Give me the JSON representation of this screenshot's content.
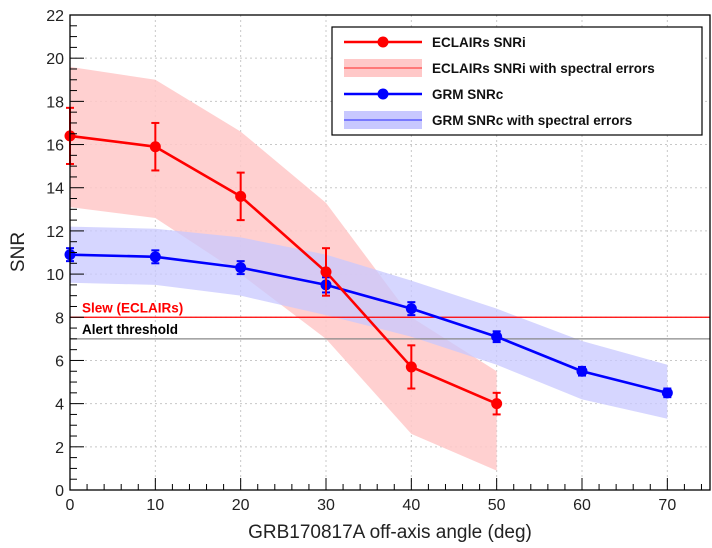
{
  "chart_data": {
    "type": "line",
    "xlabel": "GRB170817A off-axis angle (deg)",
    "ylabel": "SNR",
    "xlim": [
      0,
      75
    ],
    "ylim": [
      0,
      22
    ],
    "x_ticks": [
      0,
      10,
      20,
      30,
      40,
      50,
      60,
      70
    ],
    "y_ticks": [
      0,
      2,
      4,
      6,
      8,
      10,
      12,
      14,
      16,
      18,
      20,
      22
    ],
    "grid": true,
    "legend_position": "top-right",
    "series": [
      {
        "name": "ECLAIRs SNRi",
        "color": "#ff0000",
        "x": [
          0,
          10,
          20,
          30,
          40,
          50
        ],
        "y": [
          16.4,
          15.9,
          13.6,
          10.1,
          5.7,
          4.0
        ],
        "yerr": [
          1.3,
          1.1,
          1.1,
          1.1,
          1.0,
          0.5
        ]
      },
      {
        "name": "GRM SNRc",
        "color": "#0000ff",
        "x": [
          0,
          10,
          20,
          30,
          40,
          50,
          60,
          70
        ],
        "y": [
          10.9,
          10.8,
          10.3,
          9.5,
          8.4,
          7.1,
          5.5,
          4.5
        ],
        "yerr": [
          0.3,
          0.3,
          0.3,
          0.35,
          0.3,
          0.25,
          0.2,
          0.2
        ]
      }
    ],
    "bands": [
      {
        "name": "ECLAIRs SNRi with spectral errors",
        "color": "#ffc8c8",
        "x": [
          0,
          10,
          20,
          30,
          40,
          50
        ],
        "upper": [
          19.6,
          19.0,
          16.6,
          13.3,
          8.0,
          5.5
        ],
        "lower": [
          13.1,
          12.6,
          10.0,
          7.0,
          2.6,
          0.9
        ]
      },
      {
        "name": "GRM SNRc with spectral errors",
        "color": "#c8c8ff",
        "x": [
          0,
          10,
          20,
          30,
          40,
          50,
          60,
          70
        ],
        "upper": [
          12.2,
          12.1,
          11.7,
          10.9,
          9.7,
          8.4,
          6.9,
          5.8
        ],
        "lower": [
          9.6,
          9.5,
          9.0,
          8.1,
          7.1,
          5.8,
          4.2,
          3.3
        ]
      }
    ],
    "hlines": [
      {
        "label": "Slew (ECLAIRs)",
        "y": 8.0,
        "color": "#ff0000"
      },
      {
        "label": "Alert threshold",
        "y": 7.0,
        "color": "#888888",
        "text_color": "#000000"
      }
    ]
  }
}
